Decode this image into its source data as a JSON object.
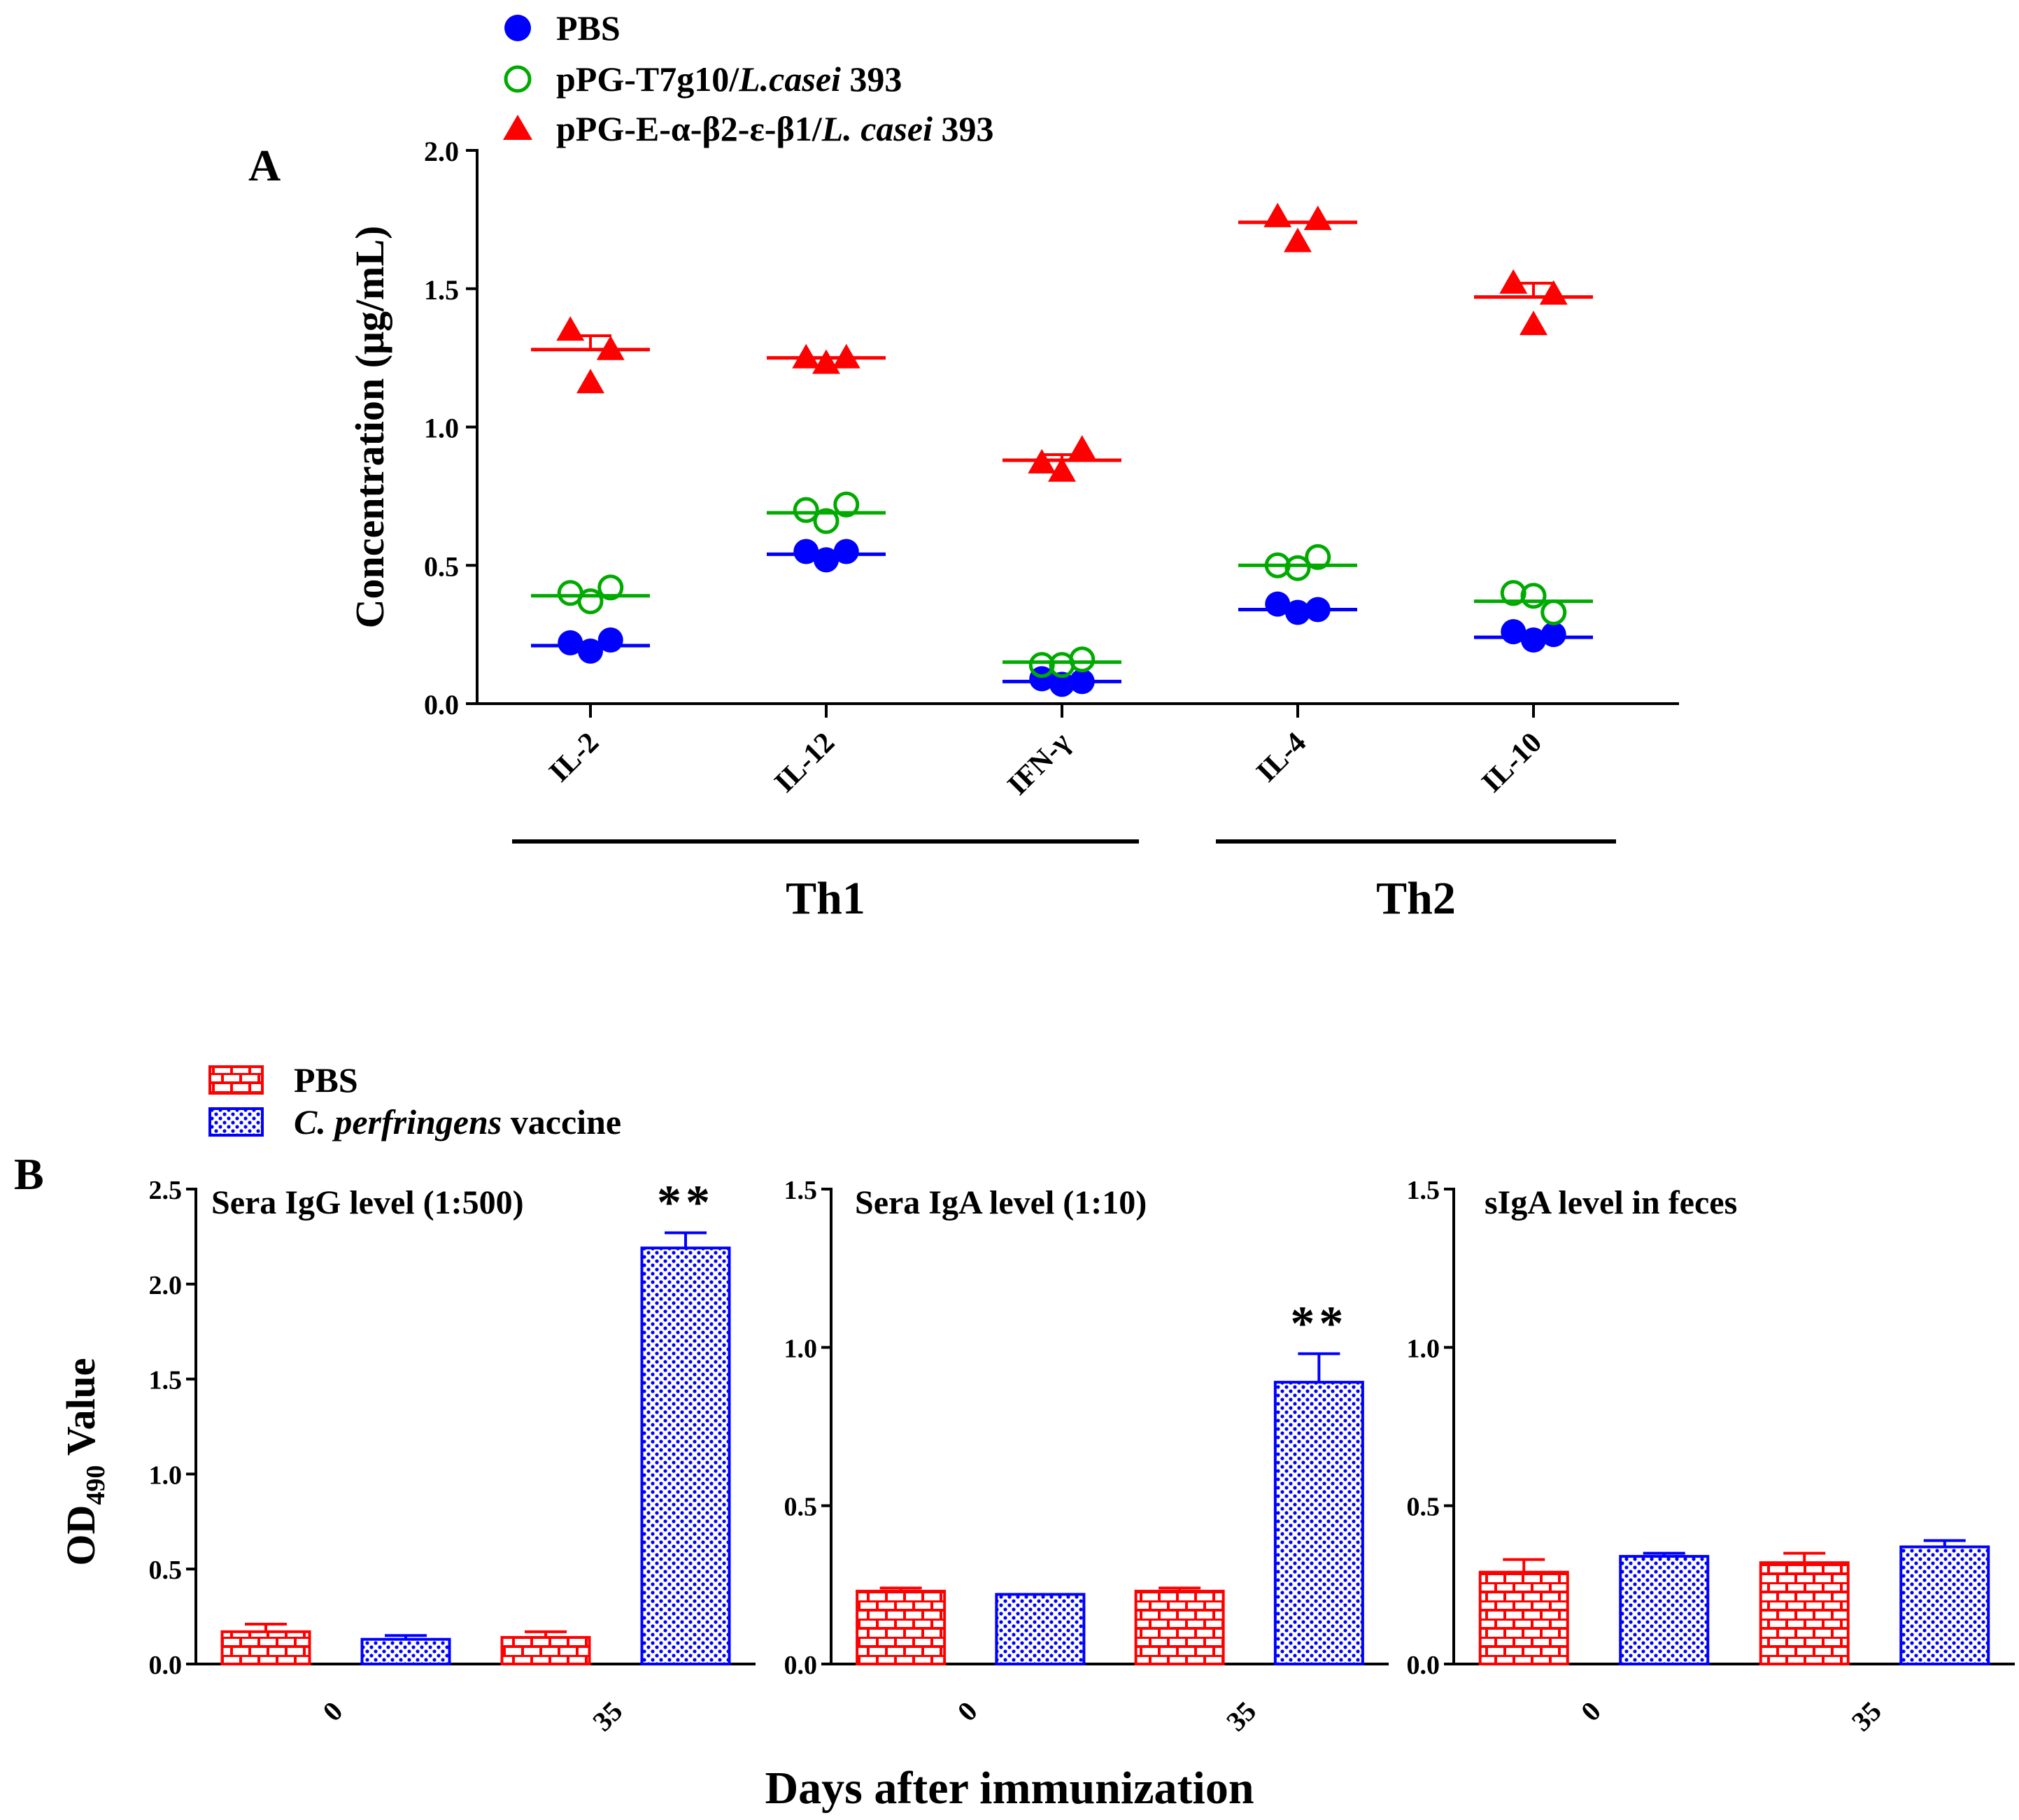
{
  "chart_data": [
    {
      "panel": "A",
      "type": "scatter",
      "panel_label": "A",
      "ylabel": "Concentration (μg/mL)",
      "ylim": [
        0,
        2.0
      ],
      "yticks": [
        "0.0",
        "0.5",
        "1.0",
        "1.5",
        "2.0"
      ],
      "yticks_values": [
        0,
        0.5,
        1.0,
        1.5,
        2.0
      ],
      "categories": [
        "IL-2",
        "IL-12",
        "IFN-γ",
        "IL-4",
        "IL-10"
      ],
      "groups": [
        {
          "label": "Th1",
          "categories": [
            "IL-2",
            "IL-12",
            "IFN-γ"
          ]
        },
        {
          "label": "Th2",
          "categories": [
            "IL-4",
            "IL-10"
          ]
        }
      ],
      "legend": {
        "placement": "top-left",
        "items": [
          {
            "prefix": "PBS",
            "italic": "",
            "suffix": ""
          },
          {
            "prefix": "pPG-T7g10/",
            "italic": "L.casei",
            "suffix": " 393"
          },
          {
            "prefix": "pPG-E-α-β2-ε-β1/",
            "italic": "L. casei",
            "suffix": " 393"
          }
        ]
      },
      "series": [
        {
          "name": "PBS",
          "marker": "filled-circle",
          "color": "#0000ff",
          "points": [
            [
              0.22,
              0.19,
              0.23
            ],
            [
              0.55,
              0.52,
              0.55
            ],
            [
              0.09,
              0.07,
              0.08
            ],
            [
              0.36,
              0.33,
              0.34
            ],
            [
              0.26,
              0.23,
              0.25
            ]
          ],
          "means": [
            0.21,
            0.54,
            0.08,
            0.34,
            0.24
          ]
        },
        {
          "name": "pPG-T7g10/L.casei 393",
          "marker": "open-circle",
          "color": "#00aa00",
          "points": [
            [
              0.4,
              0.37,
              0.42
            ],
            [
              0.7,
              0.66,
              0.72
            ],
            [
              0.14,
              0.14,
              0.16
            ],
            [
              0.5,
              0.49,
              0.53
            ],
            [
              0.4,
              0.39,
              0.33
            ]
          ],
          "means": [
            0.39,
            0.69,
            0.15,
            0.5,
            0.37
          ]
        },
        {
          "name": "pPG-E-α-β2-ε-β1/L. casei 393",
          "marker": "filled-triangle",
          "color": "#ff0000",
          "points": [
            [
              1.35,
              1.16,
              1.28
            ],
            [
              1.25,
              1.23,
              1.25
            ],
            [
              0.87,
              0.84,
              0.92
            ],
            [
              1.76,
              1.67,
              1.75
            ],
            [
              1.52,
              1.37,
              1.48
            ]
          ],
          "means": [
            1.28,
            1.25,
            0.88,
            1.74,
            1.47
          ],
          "sem": [
            0.05,
            0.0,
            0.02,
            0.0,
            0.05
          ]
        }
      ]
    },
    {
      "panel": "B",
      "type": "bar",
      "panel_label": "B",
      "ylabel_main": "OD",
      "ylabel_sub": "490",
      "ylabel_rest": " Value",
      "xlabel": "Days after immunization",
      "legend": {
        "placement": "top-left",
        "items": [
          {
            "prefix": "PBS",
            "italic": "",
            "suffix": ""
          },
          {
            "prefix": "",
            "italic": "C. perfringens",
            "suffix": " vaccine"
          }
        ]
      },
      "subplots": [
        {
          "title": "Sera IgG level (1:500)",
          "ylim": [
            0,
            2.5
          ],
          "yticks": [
            "0.0",
            "0.5",
            "1.0",
            "1.5",
            "2.0",
            "2.5"
          ],
          "yticks_values": [
            0,
            0.5,
            1.0,
            1.5,
            2.0,
            2.5
          ],
          "categories": [
            "0",
            "35"
          ],
          "series": [
            {
              "name": "PBS",
              "values": [
                0.17,
                0.14
              ],
              "errors": [
                0.04,
                0.03
              ]
            },
            {
              "name": "C. perfringens vaccine",
              "values": [
                0.13,
                2.19
              ],
              "errors": [
                0.02,
                0.08
              ]
            }
          ],
          "annotation": "**"
        },
        {
          "title": "Sera IgA level (1:10)",
          "ylim": [
            0,
            1.5
          ],
          "yticks": [
            "0.0",
            "0.5",
            "1.0",
            "1.5"
          ],
          "yticks_values": [
            0,
            0.5,
            1.0,
            1.5
          ],
          "categories": [
            "0",
            "35"
          ],
          "series": [
            {
              "name": "PBS",
              "values": [
                0.23,
                0.23
              ],
              "errors": [
                0.01,
                0.01
              ]
            },
            {
              "name": "C. perfringens vaccine",
              "values": [
                0.22,
                0.89
              ],
              "errors": [
                0.0,
                0.09
              ]
            }
          ],
          "annotation": "**"
        },
        {
          "title": "sIgA level in feces",
          "ylim": [
            0,
            1.5
          ],
          "yticks": [
            "0.0",
            "0.5",
            "1.0",
            "1.5"
          ],
          "yticks_values": [
            0,
            0.5,
            1.0,
            1.5
          ],
          "categories": [
            "0",
            "35"
          ],
          "series": [
            {
              "name": "PBS",
              "values": [
                0.29,
                0.32
              ],
              "errors": [
                0.04,
                0.03
              ]
            },
            {
              "name": "C. perfringens vaccine",
              "values": [
                0.34,
                0.37
              ],
              "errors": [
                0.01,
                0.02
              ]
            }
          ],
          "annotation": ""
        }
      ]
    }
  ],
  "colors": {
    "pbs": "#0000ff",
    "control": "#00aa00",
    "vaccine_a": "#ff0000",
    "bar_pbs": "#ff0000",
    "bar_vaccine": "#0000ff",
    "axis": "#000000"
  }
}
